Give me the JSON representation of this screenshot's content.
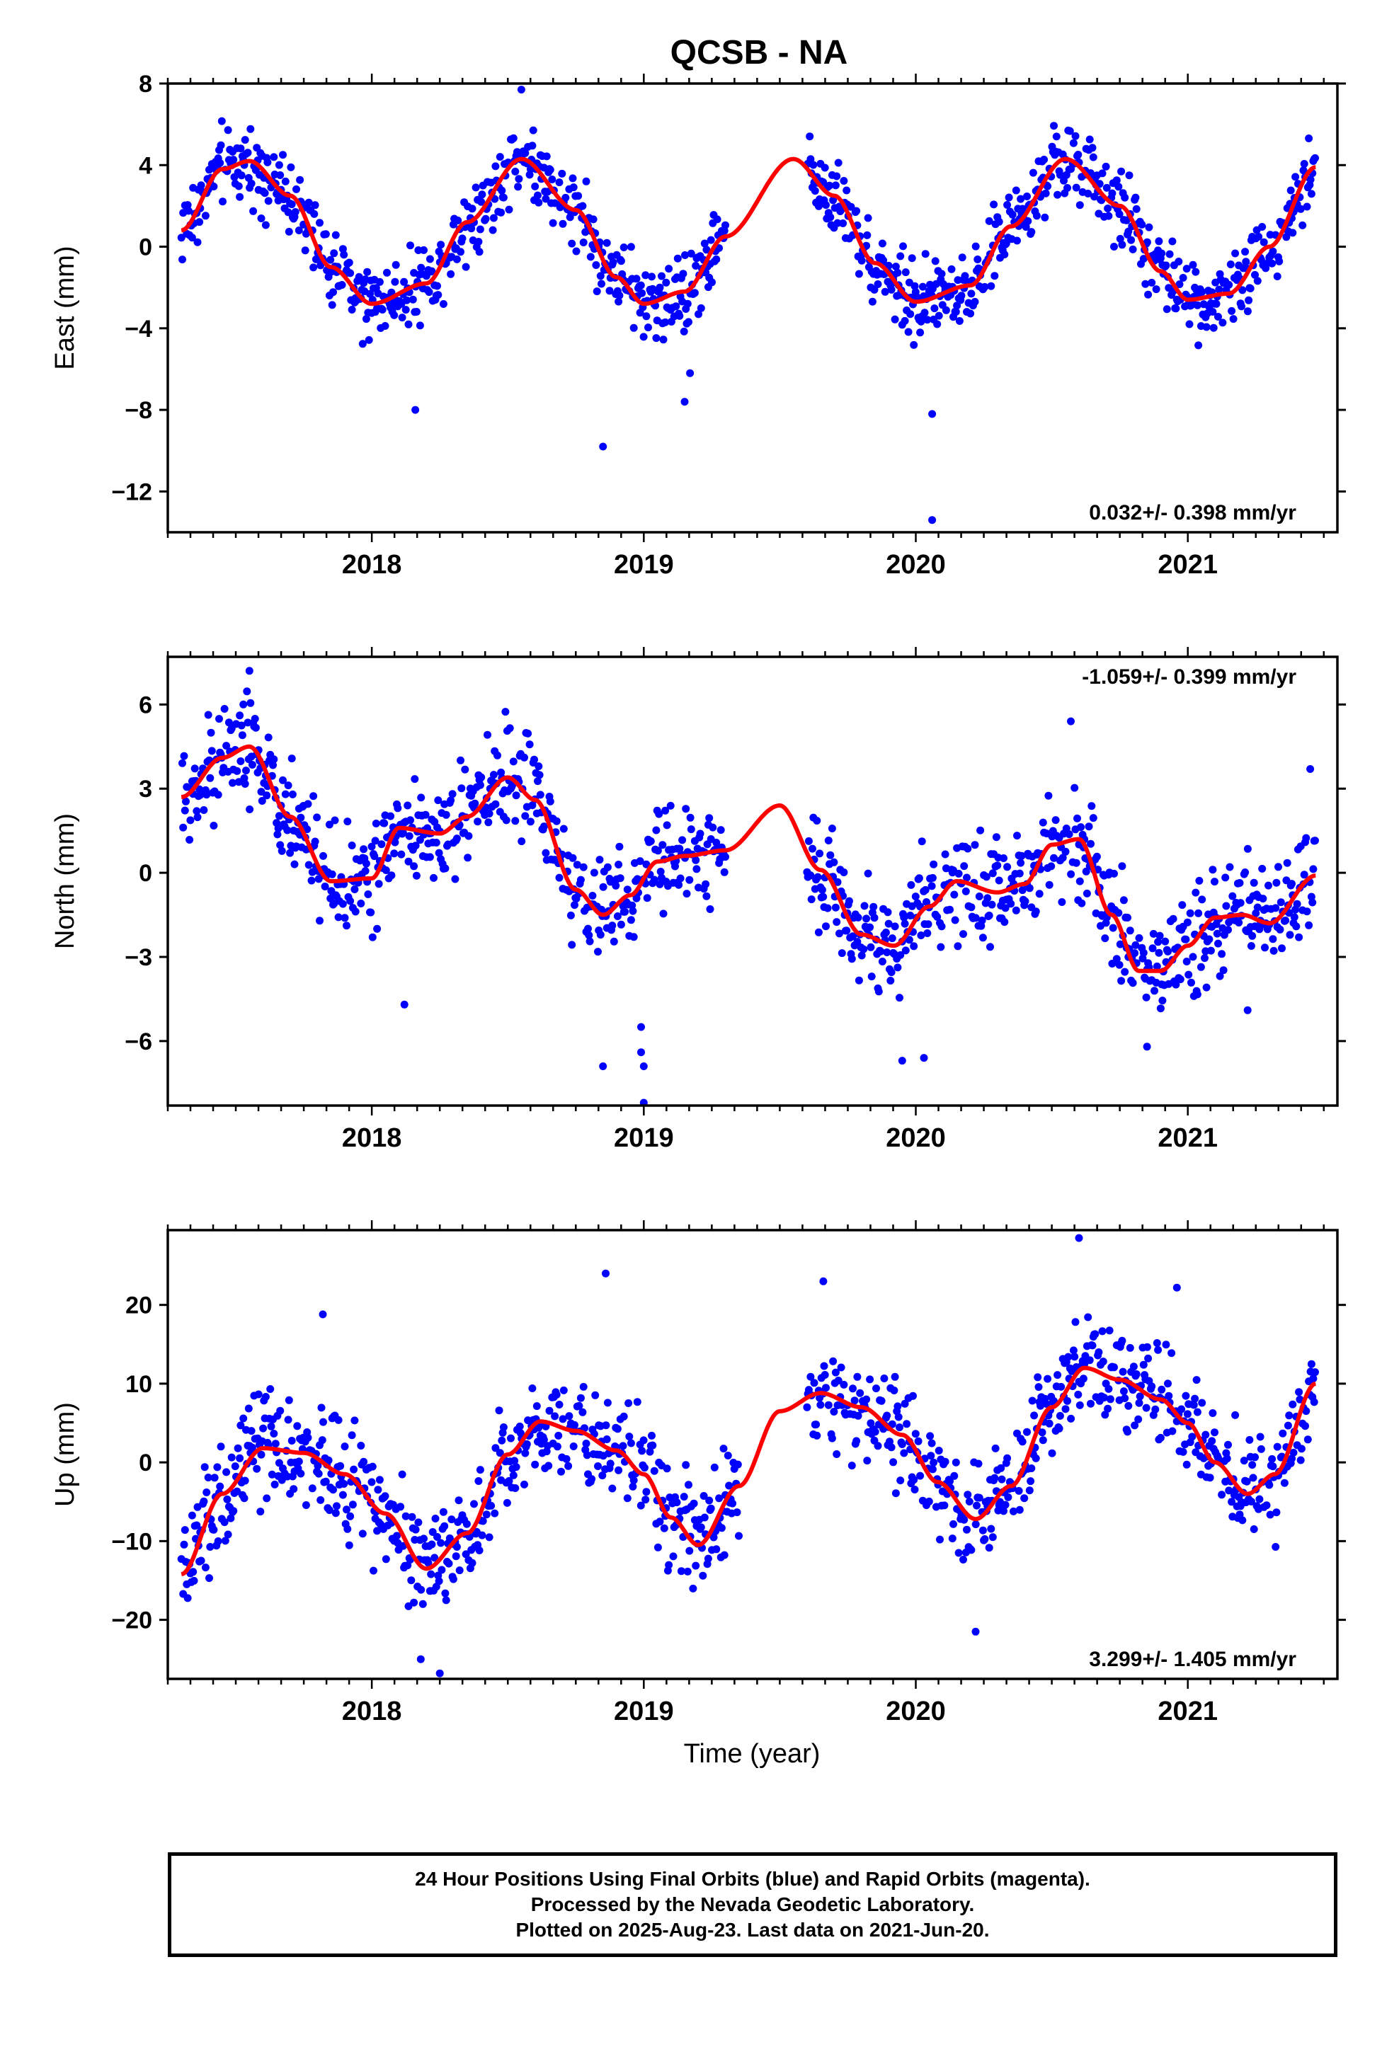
{
  "title": "QCSB - NA",
  "xlabel": "Time (year)",
  "footer": {
    "line1": "24 Hour Positions Using Final Orbits (blue) and Rapid Orbits (magenta).",
    "line2": "Processed by the Nevada Geodetic Laboratory.",
    "line3": "Plotted on 2025-Aug-23. Last data on 2021-Jun-20."
  },
  "colors": {
    "points": "#0000ff",
    "fit": "#ff0000",
    "axis": "#000000"
  },
  "chart_data": [
    {
      "type": "scatter",
      "ylabel": "East (mm)",
      "rate_label": "0.032+/- 0.398 mm/yr",
      "rate_position": "bottom-right",
      "xlim": [
        2017.25,
        2021.55
      ],
      "ylim": [
        -14,
        8
      ],
      "yticks": [
        8,
        4,
        0,
        -4,
        -8,
        -12
      ],
      "xticks": [
        2018,
        2019,
        2020,
        2021
      ],
      "grid": false,
      "data_gap": [
        2019.3,
        2019.6
      ],
      "fit": {
        "name": "",
        "x": [
          2017.3,
          2017.45,
          2017.55,
          2017.7,
          2017.85,
          2018.0,
          2018.2,
          2018.35,
          2018.55,
          2018.75,
          2018.9,
          2019.0,
          2019.15,
          2019.3,
          2019.55,
          2019.7,
          2019.85,
          2020.0,
          2020.2,
          2020.35,
          2020.55,
          2020.75,
          2020.9,
          2021.0,
          2021.15,
          2021.3,
          2021.47
        ],
        "y": [
          0.8,
          3.8,
          4.2,
          2.5,
          -1.0,
          -2.8,
          -1.8,
          1.2,
          4.3,
          1.8,
          -1.5,
          -2.8,
          -2.2,
          0.5,
          4.3,
          2.5,
          -0.8,
          -2.7,
          -1.9,
          1.0,
          4.3,
          2.0,
          -1.2,
          -2.6,
          -2.3,
          0.0,
          3.9
        ]
      },
      "points": {
        "x_start": 2017.3,
        "x_end": 2021.47,
        "spread": 1.3,
        "outliers": [
          [
            2018.16,
            -8.0
          ],
          [
            2018.85,
            -9.8
          ],
          [
            2019.15,
            -7.6
          ],
          [
            2020.06,
            -8.2
          ],
          [
            2020.06,
            -13.4
          ],
          [
            2018.55,
            7.7
          ],
          [
            2019.17,
            -6.2
          ]
        ]
      }
    },
    {
      "type": "scatter",
      "ylabel": "North (mm)",
      "rate_label": "-1.059+/- 0.399 mm/yr",
      "rate_position": "top-right",
      "xlim": [
        2017.25,
        2021.55
      ],
      "ylim": [
        -8.3,
        7.7
      ],
      "yticks": [
        6,
        3,
        0,
        -3,
        -6
      ],
      "xticks": [
        2018,
        2019,
        2020,
        2021
      ],
      "grid": false,
      "data_gap": [
        2019.3,
        2019.6
      ],
      "fit": {
        "name": "",
        "x": [
          2017.3,
          2017.45,
          2017.55,
          2017.7,
          2017.85,
          2018.0,
          2018.1,
          2018.25,
          2018.35,
          2018.5,
          2018.6,
          2018.75,
          2018.85,
          2018.95,
          2019.05,
          2019.15,
          2019.3,
          2019.5,
          2019.65,
          2019.8,
          2019.92,
          2020.05,
          2020.15,
          2020.3,
          2020.4,
          2020.5,
          2020.6,
          2020.72,
          2020.82,
          2020.9,
          2021.0,
          2021.1,
          2021.2,
          2021.3,
          2021.47
        ],
        "y": [
          2.7,
          4.1,
          4.5,
          2.0,
          -0.3,
          -0.2,
          1.6,
          1.4,
          2.0,
          3.4,
          2.6,
          -0.6,
          -1.5,
          -0.8,
          0.4,
          0.6,
          0.8,
          2.4,
          0.1,
          -2.2,
          -2.6,
          -1.2,
          -0.3,
          -0.7,
          -0.4,
          1.0,
          1.2,
          -1.5,
          -3.5,
          -3.5,
          -2.6,
          -1.6,
          -1.5,
          -1.8,
          -0.1
        ]
      },
      "points": {
        "x_start": 2017.3,
        "x_end": 2021.47,
        "spread": 1.3,
        "outliers": [
          [
            2018.12,
            -4.7
          ],
          [
            2018.85,
            -6.9
          ],
          [
            2018.99,
            -5.5
          ],
          [
            2018.99,
            -6.4
          ],
          [
            2019.0,
            -6.9
          ],
          [
            2019.0,
            -8.2
          ],
          [
            2019.95,
            -6.7
          ],
          [
            2020.03,
            -6.6
          ],
          [
            2020.85,
            -6.2
          ],
          [
            2021.22,
            -4.9
          ],
          [
            2020.57,
            5.4
          ],
          [
            2017.55,
            7.2
          ],
          [
            2021.45,
            3.7
          ]
        ]
      }
    },
    {
      "type": "scatter",
      "ylabel": "Up (mm)",
      "rate_label": "3.299+/- 1.405 mm/yr",
      "rate_position": "bottom-right",
      "xlim": [
        2017.25,
        2021.55
      ],
      "ylim": [
        -27.5,
        29.5
      ],
      "yticks": [
        20,
        10,
        0,
        -10,
        -20
      ],
      "xticks": [
        2018,
        2019,
        2020,
        2021
      ],
      "grid": false,
      "data_gap": [
        2019.35,
        2019.6
      ],
      "fit": {
        "name": "",
        "x": [
          2017.3,
          2017.45,
          2017.6,
          2017.75,
          2017.9,
          2018.05,
          2018.2,
          2018.35,
          2018.5,
          2018.62,
          2018.75,
          2018.9,
          2019.0,
          2019.1,
          2019.2,
          2019.35,
          2019.5,
          2019.65,
          2019.8,
          2019.95,
          2020.08,
          2020.22,
          2020.35,
          2020.5,
          2020.62,
          2020.75,
          2020.9,
          2021.0,
          2021.1,
          2021.22,
          2021.32,
          2021.47
        ],
        "y": [
          -14.2,
          -4.0,
          1.8,
          1.2,
          -1.5,
          -6.5,
          -13.5,
          -9.0,
          1.0,
          5.2,
          4.0,
          1.5,
          -1.5,
          -7.0,
          -10.5,
          -3.0,
          6.5,
          8.8,
          7.0,
          3.5,
          -2.5,
          -7.2,
          -3.0,
          7.0,
          12.0,
          10.5,
          8.0,
          5.0,
          0.0,
          -4.0,
          -1.5,
          10.0
        ]
      },
      "points": {
        "x_start": 2017.3,
        "x_end": 2021.47,
        "spread": 4.8,
        "outliers": [
          [
            2018.18,
            -25.0
          ],
          [
            2018.25,
            -26.8
          ],
          [
            2018.86,
            24.0
          ],
          [
            2019.66,
            23.0
          ],
          [
            2020.22,
            -21.5
          ],
          [
            2020.6,
            28.5
          ],
          [
            2020.96,
            22.2
          ],
          [
            2017.82,
            18.8
          ]
        ]
      }
    }
  ]
}
